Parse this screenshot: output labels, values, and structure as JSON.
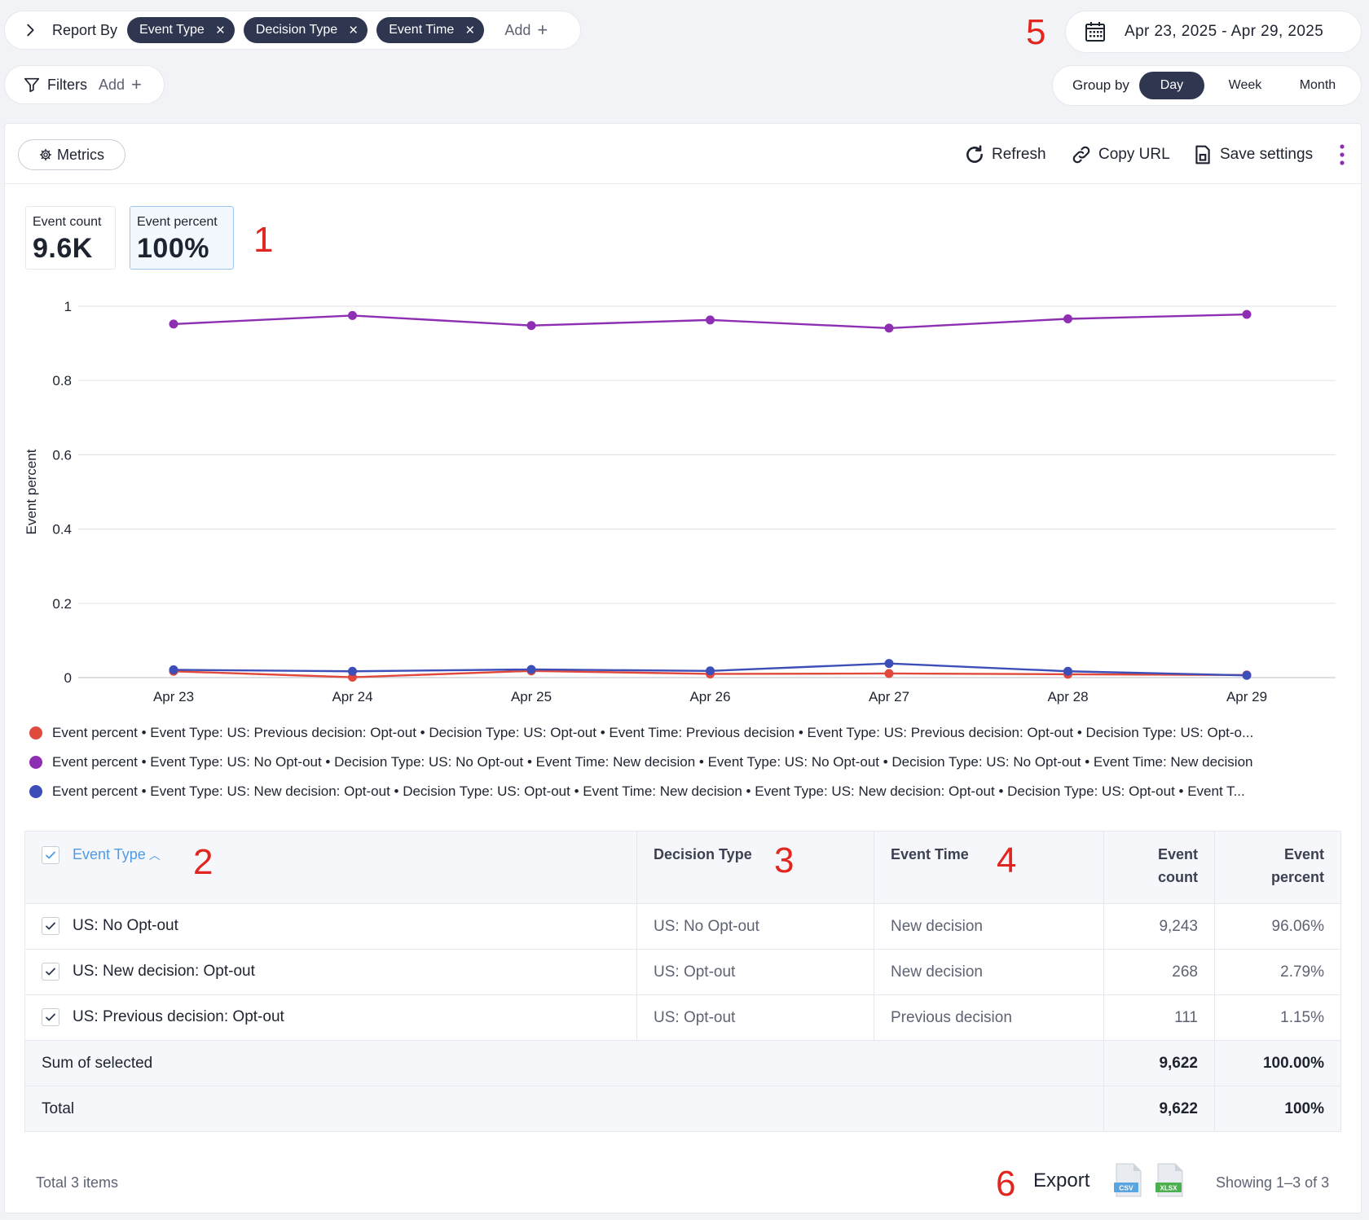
{
  "report_by": {
    "label": "Report By",
    "chips": [
      {
        "label": "Event Type"
      },
      {
        "label": "Decision Type"
      },
      {
        "label": "Event Time"
      }
    ],
    "add_label": "Add"
  },
  "date_range": {
    "label": "Apr 23, 2025 - Apr 29, 2025"
  },
  "filters": {
    "label": "Filters",
    "add_label": "Add"
  },
  "group_by": {
    "label": "Group by",
    "options": [
      "Day",
      "Week",
      "Month"
    ],
    "selected": "Day"
  },
  "annotations": [
    "1",
    "2",
    "3",
    "4",
    "5",
    "6"
  ],
  "toolbar": {
    "metrics_label": "Metrics",
    "refresh_label": "Refresh",
    "copy_url_label": "Copy URL",
    "save_settings_label": "Save settings"
  },
  "stats": [
    {
      "label": "Event count",
      "value": "9.6K"
    },
    {
      "label": "Event percent",
      "value": "100%"
    }
  ],
  "chart_data": {
    "type": "line",
    "title": "",
    "xlabel": "",
    "ylabel": "Event percent",
    "categories": [
      "Apr 23",
      "Apr 24",
      "Apr 25",
      "Apr 26",
      "Apr 27",
      "Apr 28",
      "Apr 29"
    ],
    "yticks": [
      "0",
      "0.2",
      "0.4",
      "0.6",
      "0.8",
      "1"
    ],
    "ylim": [
      0,
      1
    ],
    "grid": true,
    "series": [
      {
        "name": "Event percent • Event Type: US: Previous decision: Opt-out • Decision Type: US: Opt-out • Event Time: Previous decision • Event Type: US: Previous decision: Opt-out • Decision Type: US: Opt-o...",
        "color": "#e0493b",
        "values": [
          0.017,
          0.001,
          0.018,
          0.01,
          0.011,
          0.009,
          0.007
        ]
      },
      {
        "name": "Event percent • Event Type: US: No Opt-out • Decision Type: US: No Opt-out • Event Time: New decision • Event Type: US: No Opt-out • Decision Type: US: No Opt-out • Event Time: New decision",
        "color": "#8e2fb3",
        "values": [
          0.952,
          0.975,
          0.948,
          0.963,
          0.941,
          0.966,
          0.978
        ]
      },
      {
        "name": "Event percent • Event Type: US: New decision: Opt-out • Decision Type: US: Opt-out • Event Time: New decision • Event Type: US: New decision: Opt-out • Decision Type: US: Opt-out • Event T...",
        "color": "#3d4eb8",
        "values": [
          0.021,
          0.017,
          0.022,
          0.018,
          0.038,
          0.017,
          0.006
        ]
      }
    ]
  },
  "table": {
    "headers": {
      "event_type": "Event Type",
      "decision_type": "Decision Type",
      "event_time": "Event Time",
      "event_count_1": "Event",
      "event_count_2": "count",
      "event_percent_1": "Event",
      "event_percent_2": "percent"
    },
    "rows": [
      {
        "event_type": "US: No Opt-out",
        "decision_type": "US: No Opt-out",
        "event_time": "New decision",
        "count": "9,243",
        "percent": "96.06%"
      },
      {
        "event_type": "US: New decision: Opt-out",
        "decision_type": "US: Opt-out",
        "event_time": "New decision",
        "count": "268",
        "percent": "2.79%"
      },
      {
        "event_type": "US: Previous decision: Opt-out",
        "decision_type": "US: Opt-out",
        "event_time": "Previous decision",
        "count": "111",
        "percent": "1.15%"
      }
    ],
    "sum_selected": {
      "label": "Sum of selected",
      "count": "9,622",
      "percent": "100.00%"
    },
    "total": {
      "label": "Total",
      "count": "9,622",
      "percent": "100%"
    }
  },
  "footer": {
    "total_items": "Total 3 items",
    "export_label": "Export",
    "csv_label": "CSV",
    "xlsx_label": "XLSX",
    "showing": "Showing 1–3 of 3"
  }
}
